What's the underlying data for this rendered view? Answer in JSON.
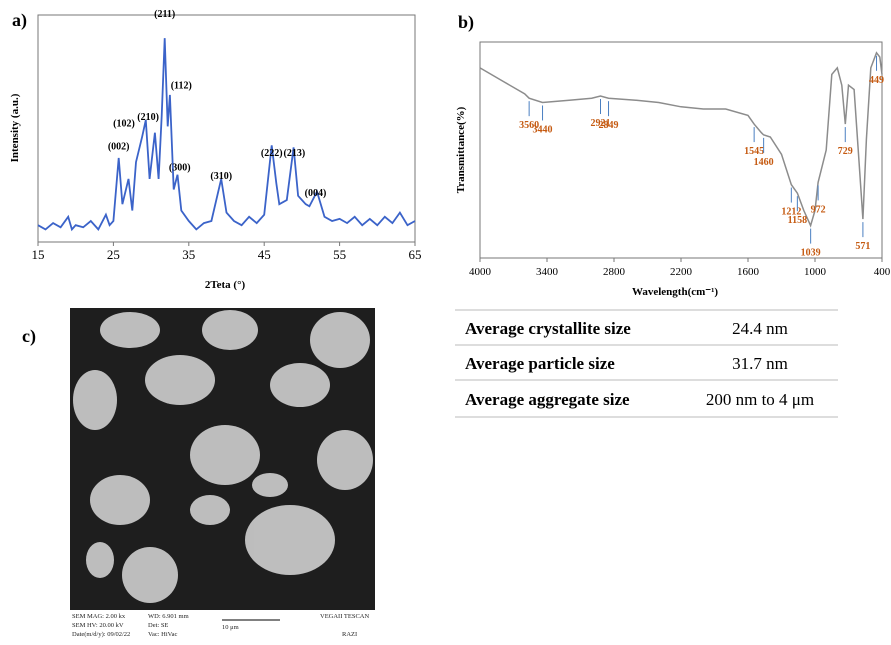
{
  "chart_data": [
    {
      "type": "line",
      "title": "a)",
      "xlabel": "2Teta (°)",
      "ylabel": "Intensity (a.u.)",
      "color": "#3b63c9",
      "x": [
        15,
        16,
        17,
        18,
        19,
        19.5,
        20,
        21,
        22,
        23,
        24,
        24.5,
        25,
        25.7,
        26.2,
        27,
        27.5,
        28,
        28.8,
        29.3,
        29.8,
        30.5,
        31,
        31.4,
        31.8,
        32.2,
        32.5,
        33,
        33.5,
        34,
        35,
        36,
        37,
        38,
        39.3,
        40,
        41,
        42,
        43,
        44,
        45,
        46,
        46.6,
        47,
        48,
        48.9,
        49.5,
        50,
        50.5,
        51,
        52,
        53,
        54,
        55,
        56,
        57,
        58,
        59,
        60,
        61,
        62,
        63,
        64,
        65
      ],
      "values": [
        8,
        6,
        9,
        7,
        12,
        6,
        8,
        7,
        10,
        6,
        13,
        8,
        10,
        40,
        18,
        30,
        15,
        38,
        50,
        58,
        30,
        52,
        30,
        60,
        97,
        55,
        70,
        25,
        32,
        15,
        10,
        6,
        9,
        10,
        30,
        14,
        10,
        8,
        12,
        9,
        13,
        46,
        28,
        18,
        20,
        45,
        22,
        20,
        18,
        17,
        24,
        12,
        10,
        11,
        9,
        12,
        8,
        11,
        8,
        12,
        9,
        14,
        8,
        10
      ],
      "xlim": [
        15,
        65
      ],
      "xticks": [
        15,
        25,
        35,
        45,
        55,
        65
      ],
      "ylim": [
        0,
        108
      ],
      "annotations": [
        {
          "text": "(002)",
          "x": 25.7,
          "y": 44
        },
        {
          "text": "(102)",
          "x": 26.4,
          "y": 55
        },
        {
          "text": "(210)",
          "x": 29.6,
          "y": 58
        },
        {
          "text": "(211)",
          "x": 31.8,
          "y": 107
        },
        {
          "text": "(112)",
          "x": 34,
          "y": 73
        },
        {
          "text": "(300)",
          "x": 33.8,
          "y": 34
        },
        {
          "text": "(310)",
          "x": 39.3,
          "y": 30
        },
        {
          "text": "(222)",
          "x": 46,
          "y": 41
        },
        {
          "text": "(213)",
          "x": 49,
          "y": 41
        },
        {
          "text": "(004)",
          "x": 51.8,
          "y": 22
        }
      ]
    },
    {
      "type": "line",
      "title": "b)",
      "xlabel": "Wavelength(cm⁻¹)",
      "ylabel": "Transmittance(%)",
      "color": "#8c8c8c",
      "x": [
        4000,
        3800,
        3600,
        3560,
        3440,
        3200,
        3000,
        2921,
        2849,
        2600,
        2400,
        2200,
        2000,
        1800,
        1600,
        1545,
        1480,
        1460,
        1400,
        1300,
        1212,
        1158,
        1100,
        1039,
        1000,
        972,
        900,
        850,
        800,
        760,
        729,
        700,
        650,
        600,
        571,
        540,
        500,
        449,
        420,
        400
      ],
      "values": [
        88,
        82,
        76,
        74,
        72,
        73,
        74,
        75,
        74,
        73,
        72,
        70,
        69,
        69,
        66,
        62,
        58,
        57,
        56,
        48,
        34,
        30,
        22,
        15,
        22,
        35,
        50,
        85,
        88,
        80,
        62,
        80,
        78,
        40,
        18,
        55,
        88,
        95,
        93,
        85
      ],
      "xlim": [
        4000,
        400
      ],
      "xticks": [
        4000,
        3400,
        2800,
        2200,
        1600,
        1000,
        400
      ],
      "ylim": [
        0,
        100
      ],
      "peaks": [
        3560,
        3440,
        2921,
        2849,
        1545,
        1460,
        1212,
        1158,
        1039,
        972,
        729,
        571,
        449
      ],
      "peak_color": "#c55a11"
    }
  ],
  "table": {
    "rows": [
      [
        "Average crystallite size",
        "24.4 nm"
      ],
      [
        "Average particle size",
        "31.7 nm"
      ],
      [
        "Average aggregate size",
        "200 nm to 4 μm"
      ]
    ]
  },
  "sem": {
    "label": "c)",
    "footer": [
      "SEM MAG: 2.00 kx",
      "WD: 6.901 mm",
      "VEGAII TESCAN",
      "SEM HV: 20.00 kV",
      "Det: SE",
      "10 μm",
      "Date(m/d/y): 09/02/22",
      "Vac: HiVac",
      "RAZI"
    ]
  }
}
